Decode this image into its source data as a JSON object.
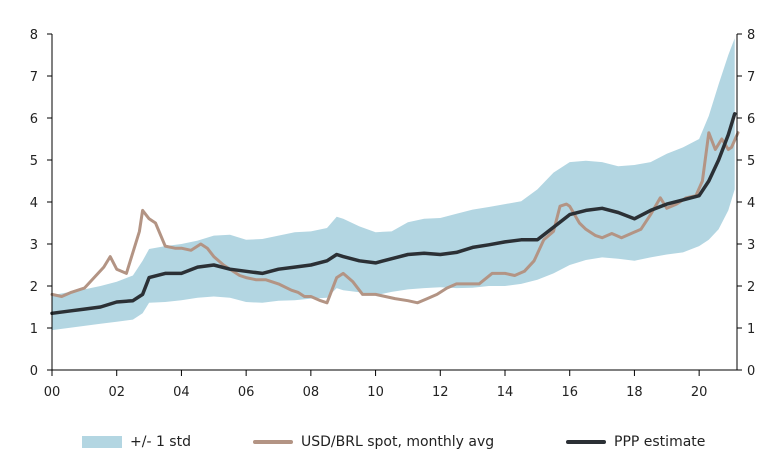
{
  "chart_data": {
    "type": "line",
    "x_tick_labels": [
      "00",
      "02",
      "04",
      "06",
      "08",
      "10",
      "12",
      "14",
      "16",
      "18",
      "20"
    ],
    "x_tick_values": [
      2000,
      2002,
      2004,
      2006,
      2008,
      2010,
      2012,
      2014,
      2016,
      2018,
      2020
    ],
    "y_tick_labels": [
      "0",
      "1",
      "2",
      "3",
      "4",
      "5",
      "6",
      "7",
      "8"
    ],
    "y_tick_values": [
      0,
      1,
      2,
      3,
      4,
      5,
      6,
      7,
      8
    ],
    "xlim": [
      2000,
      2022
    ],
    "ylim": [
      0,
      8
    ],
    "grid": false,
    "legend_position": "bottom",
    "colors": {
      "band": "#b3d6e2",
      "spot": "#b39484",
      "ppp": "#2b3035",
      "axis": "#000000"
    },
    "series": [
      {
        "name": "+/- 1 std",
        "kind": "band",
        "x": [
          2000,
          2000.5,
          2001,
          2001.5,
          2002,
          2002.5,
          2002.8,
          2003,
          2003.5,
          2004,
          2004.5,
          2005,
          2005.5,
          2006,
          2006.5,
          2007,
          2007.5,
          2008,
          2008.5,
          2008.8,
          2009,
          2009.5,
          2010,
          2010.5,
          2011,
          2011.5,
          2012,
          2012.5,
          2013,
          2013.5,
          2014,
          2014.5,
          2015,
          2015.5,
          2016,
          2016.5,
          2017,
          2017.5,
          2018,
          2018.5,
          2019,
          2019.5,
          2020,
          2020.3,
          2020.6,
          2020.9,
          2021.1
        ],
        "lower": [
          0.95,
          1.0,
          1.05,
          1.1,
          1.15,
          1.2,
          1.35,
          1.6,
          1.62,
          1.66,
          1.72,
          1.75,
          1.72,
          1.62,
          1.6,
          1.65,
          1.66,
          1.7,
          1.72,
          1.95,
          1.9,
          1.85,
          1.78,
          1.86,
          1.92,
          1.95,
          1.97,
          1.95,
          1.96,
          2.0,
          2.0,
          2.05,
          2.15,
          2.3,
          2.5,
          2.62,
          2.68,
          2.65,
          2.6,
          2.68,
          2.75,
          2.8,
          2.95,
          3.1,
          3.35,
          3.8,
          4.3
        ],
        "upper": [
          1.78,
          1.85,
          1.92,
          2.0,
          2.1,
          2.25,
          2.6,
          2.88,
          2.95,
          3.0,
          3.08,
          3.2,
          3.22,
          3.1,
          3.12,
          3.2,
          3.28,
          3.3,
          3.38,
          3.65,
          3.6,
          3.42,
          3.28,
          3.3,
          3.52,
          3.6,
          3.62,
          3.72,
          3.82,
          3.88,
          3.95,
          4.02,
          4.3,
          4.7,
          4.95,
          4.98,
          4.95,
          4.85,
          4.88,
          4.95,
          5.15,
          5.3,
          5.5,
          6.05,
          6.8,
          7.5,
          7.9
        ]
      },
      {
        "name": "USD/BRL spot, monthly avg",
        "kind": "line",
        "x": [
          2000,
          2000.3,
          2000.6,
          2001,
          2001.3,
          2001.6,
          2001.8,
          2002,
          2002.3,
          2002.5,
          2002.7,
          2002.8,
          2003,
          2003.2,
          2003.5,
          2003.8,
          2004,
          2004.3,
          2004.6,
          2004.8,
          2005,
          2005.3,
          2005.5,
          2005.8,
          2006,
          2006.3,
          2006.6,
          2007,
          2007.4,
          2007.6,
          2007.8,
          2008,
          2008.3,
          2008.5,
          2008.8,
          2009,
          2009.3,
          2009.6,
          2010,
          2010.3,
          2010.6,
          2011,
          2011.3,
          2011.6,
          2011.9,
          2012.2,
          2012.5,
          2012.8,
          2013.2,
          2013.6,
          2014,
          2014.3,
          2014.6,
          2014.9,
          2015.2,
          2015.5,
          2015.7,
          2015.9,
          2016,
          2016.3,
          2016.5,
          2016.8,
          2017,
          2017.3,
          2017.6,
          2017.9,
          2018.2,
          2018.5,
          2018.8,
          2019,
          2019.3,
          2019.6,
          2019.9,
          2020.1,
          2020.3,
          2020.5,
          2020.7,
          2020.9,
          2021,
          2021.2
        ],
        "y": [
          1.8,
          1.75,
          1.85,
          1.95,
          2.2,
          2.45,
          2.7,
          2.4,
          2.3,
          2.8,
          3.3,
          3.8,
          3.6,
          3.5,
          2.95,
          2.9,
          2.9,
          2.85,
          3.0,
          2.9,
          2.7,
          2.5,
          2.4,
          2.25,
          2.2,
          2.15,
          2.15,
          2.05,
          1.9,
          1.85,
          1.75,
          1.75,
          1.65,
          1.6,
          2.2,
          2.3,
          2.1,
          1.8,
          1.8,
          1.75,
          1.7,
          1.65,
          1.6,
          1.7,
          1.8,
          1.95,
          2.05,
          2.05,
          2.05,
          2.3,
          2.3,
          2.25,
          2.35,
          2.6,
          3.1,
          3.3,
          3.9,
          3.95,
          3.9,
          3.5,
          3.35,
          3.2,
          3.15,
          3.25,
          3.15,
          3.25,
          3.35,
          3.7,
          4.1,
          3.85,
          3.95,
          4.1,
          4.15,
          4.5,
          5.65,
          5.25,
          5.5,
          5.25,
          5.3,
          5.65
        ]
      },
      {
        "name": "PPP estimate",
        "kind": "line",
        "x": [
          2000,
          2000.5,
          2001,
          2001.5,
          2002,
          2002.5,
          2002.8,
          2003,
          2003.5,
          2004,
          2004.5,
          2005,
          2005.5,
          2006,
          2006.5,
          2007,
          2007.5,
          2008,
          2008.5,
          2008.8,
          2009,
          2009.5,
          2010,
          2010.5,
          2011,
          2011.5,
          2012,
          2012.5,
          2013,
          2013.5,
          2014,
          2014.5,
          2015,
          2015.5,
          2016,
          2016.5,
          2017,
          2017.5,
          2018,
          2018.5,
          2019,
          2019.5,
          2020,
          2020.3,
          2020.6,
          2020.9,
          2021.1
        ],
        "y": [
          1.35,
          1.4,
          1.45,
          1.5,
          1.62,
          1.65,
          1.8,
          2.2,
          2.3,
          2.3,
          2.45,
          2.5,
          2.4,
          2.35,
          2.3,
          2.4,
          2.45,
          2.5,
          2.6,
          2.75,
          2.7,
          2.6,
          2.55,
          2.65,
          2.75,
          2.78,
          2.75,
          2.8,
          2.92,
          2.98,
          3.05,
          3.1,
          3.1,
          3.4,
          3.7,
          3.8,
          3.85,
          3.75,
          3.6,
          3.8,
          3.95,
          4.05,
          4.15,
          4.5,
          5.0,
          5.6,
          6.1
        ]
      }
    ]
  }
}
